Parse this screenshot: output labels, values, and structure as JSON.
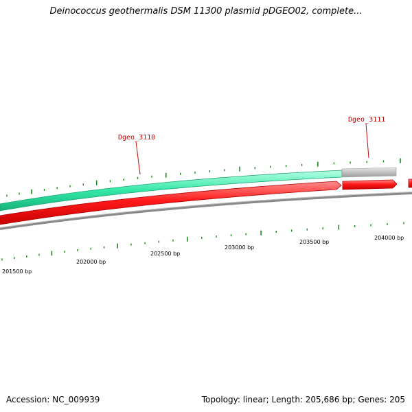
{
  "title": "Deinococcus geothermalis DSM 11300 plasmid pDGEO02, complete...",
  "footer": {
    "accession": "Accession: NC_009939",
    "summary": "Topology: linear; Length: 205,686 bp; Genes: 205"
  },
  "colors": {
    "gene_forward": "#ff1a1a",
    "gene_green": "#33e8a8",
    "gene_gray": "#b8b8b8",
    "backbone": "#8a8a8a",
    "tick": "#1a8a1a",
    "gene_label": "#cc0000"
  },
  "genes": [
    {
      "name": "Dgeo_3110"
    },
    {
      "name": "Dgeo_3111"
    }
  ],
  "bp_labels": [
    "201500 bp",
    "202000 bp",
    "202500 bp",
    "203000 bp",
    "203500 bp",
    "204000 bp"
  ]
}
